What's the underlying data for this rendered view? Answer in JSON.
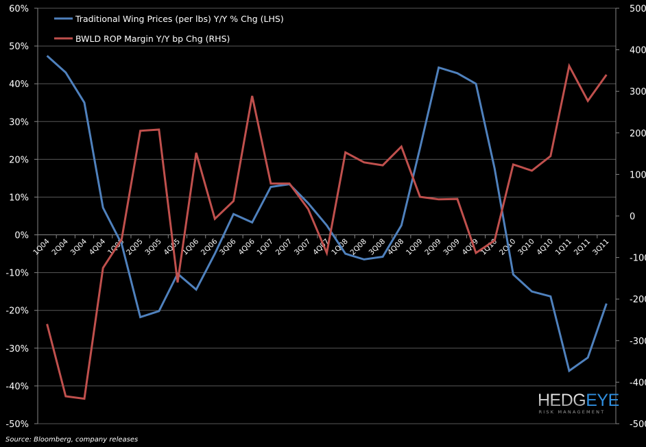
{
  "chart_data": {
    "type": "line",
    "title": "",
    "xlabel": "",
    "ylabel_left": "",
    "ylabel_right": "",
    "categories": [
      "1Q04",
      "2Q04",
      "3Q04",
      "4Q04",
      "1Q05",
      "2Q05",
      "3Q05",
      "4Q05",
      "1Q06",
      "2Q06",
      "3Q06",
      "4Q06",
      "1Q07",
      "2Q07",
      "3Q07",
      "4Q07",
      "1Q08",
      "2Q08",
      "3Q08",
      "4Q08",
      "1Q09",
      "2Q09",
      "3Q09",
      "4Q09",
      "1Q10",
      "2Q10",
      "3Q10",
      "4Q10",
      "1Q11",
      "2Q11",
      "3Q11"
    ],
    "series": [
      {
        "name": "Traditional Wing Prices (per lbs) Y/Y % Chg (LHS)",
        "axis": "left",
        "color": "#4f81bd",
        "unit": "%",
        "values": [
          47.4,
          43,
          35,
          7.2,
          -2.4,
          -21.8,
          -20.2,
          -10.3,
          -14.5,
          -5,
          5.5,
          3.3,
          12.7,
          13.4,
          8.4,
          2.5,
          -5,
          -6.5,
          -5.8,
          2.5,
          23,
          44.3,
          42.8,
          40,
          17.6,
          -10.5,
          -15,
          -16.3,
          -36,
          -32.5,
          -18.2
        ]
      },
      {
        "name": "BWLD ROP Margin Y/Y bp Chg (RHS)",
        "axis": "right",
        "color": "#c0504d",
        "unit": "bp",
        "values": [
          -260,
          -434,
          -440,
          -125,
          -56,
          205,
          208,
          -160,
          152,
          -7,
          36,
          289,
          78,
          78,
          17,
          -89,
          153,
          129,
          122,
          167,
          46,
          40,
          41,
          -89,
          -59,
          124,
          109,
          144,
          361,
          277,
          340
        ]
      }
    ],
    "y_left": {
      "ylim": [
        -50,
        60
      ],
      "ticks": [
        60,
        50,
        40,
        30,
        20,
        10,
        0,
        -10,
        -20,
        -30,
        -40,
        -50
      ],
      "tick_labels": [
        "60%",
        "50%",
        "40%",
        "30%",
        "20%",
        "10%",
        "0%",
        "-10%",
        "-20%",
        "-30%",
        "-40%",
        "-50%"
      ]
    },
    "y_right": {
      "ylim": [
        -500,
        500
      ],
      "ticks": [
        500,
        400,
        300,
        200,
        100,
        0,
        -100,
        -200,
        -300,
        -400,
        -500
      ],
      "tick_labels": [
        "500",
        "400",
        "300",
        "200",
        "100",
        "0",
        "-100",
        "-200",
        "-300",
        "-400",
        "-500"
      ]
    },
    "grid": true,
    "legend_position": "top-left-inside",
    "background": "#000000"
  },
  "legend": {
    "items": [
      {
        "label": "Traditional Wing Prices (per lbs) Y/Y % Chg (LHS)",
        "color": "#4f81bd"
      },
      {
        "label": "BWLD ROP Margin Y/Y bp Chg (RHS)",
        "color": "#c0504d"
      }
    ]
  },
  "footer": {
    "source": "Source: Bloomberg, company releases"
  },
  "logo": {
    "main_a": "HEDG",
    "main_b": "EYE",
    "sub": "RISK MANAGEMENT"
  }
}
